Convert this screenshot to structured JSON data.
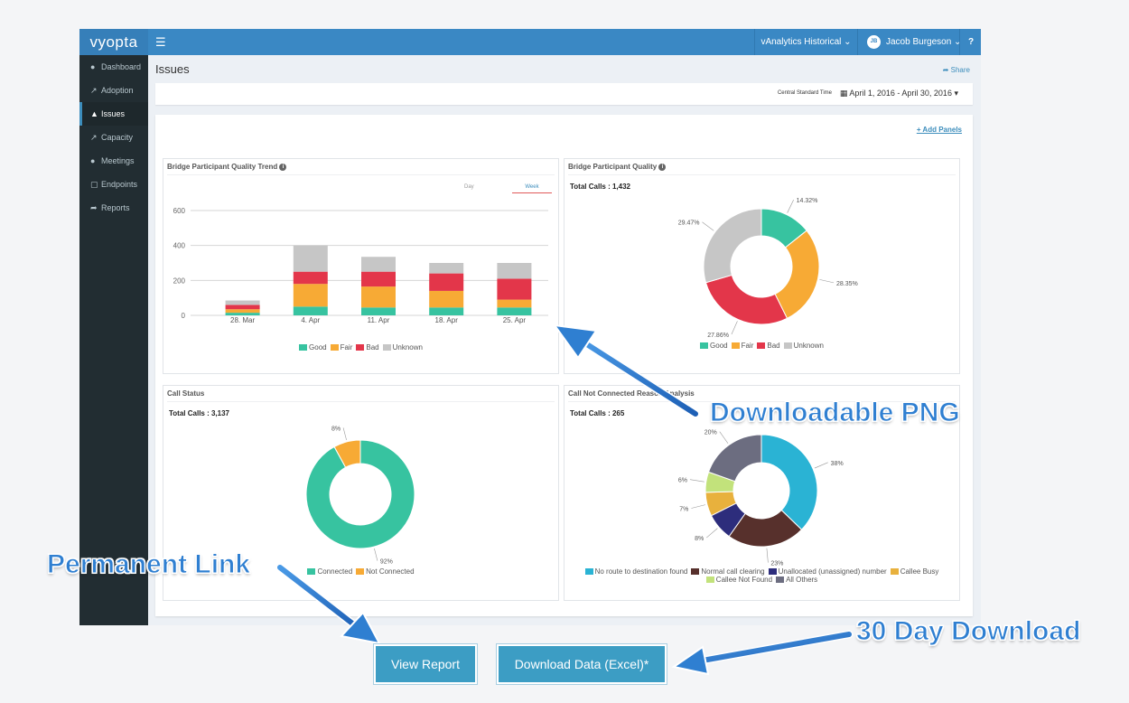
{
  "app": {
    "logo": "vyopta",
    "top_menu": "vAnalytics Historical",
    "user_initials": "JB",
    "user_name": "Jacob Burgeson"
  },
  "sidebar": {
    "items": [
      {
        "label": "Dashboard",
        "icon": "dashboard-icon"
      },
      {
        "label": "Adoption",
        "icon": "chart-line-icon"
      },
      {
        "label": "Issues",
        "icon": "warning-icon",
        "active": true
      },
      {
        "label": "Capacity",
        "icon": "chart-area-icon"
      },
      {
        "label": "Meetings",
        "icon": "users-icon"
      },
      {
        "label": "Endpoints",
        "icon": "monitor-icon"
      },
      {
        "label": "Reports",
        "icon": "share-arrow-icon"
      }
    ]
  },
  "page": {
    "title": "Issues",
    "share": "Share",
    "timezone": "Central Standard Time",
    "date_range": "April 1, 2016 - April 30, 2016",
    "add_panels": "+ Add Panels"
  },
  "panels": {
    "trend": {
      "title": "Bridge Participant Quality Trend",
      "tab_day": "Day",
      "tab_week": "Week"
    },
    "quality": {
      "title": "Bridge Participant Quality",
      "total": "Total Calls : 1,432"
    },
    "status": {
      "title": "Call Status",
      "total": "Total Calls : 3,137"
    },
    "reason": {
      "title": "Call Not Connected Reason Analysis",
      "total": "Total Calls : 265"
    }
  },
  "chart_data": [
    {
      "type": "bar",
      "stacked": true,
      "title": "Bridge Participant Quality Trend",
      "categories": [
        "28. Mar",
        "4. Apr",
        "11. Apr",
        "18. Apr",
        "25. Apr"
      ],
      "ylim": [
        0,
        600
      ],
      "yticks": [
        0,
        200,
        400,
        600
      ],
      "grid": true,
      "legend": "bottom",
      "series": [
        {
          "name": "Good",
          "color": "#37c3a0",
          "values": [
            15,
            50,
            45,
            45,
            45
          ]
        },
        {
          "name": "Fair",
          "color": "#f7aa35",
          "values": [
            20,
            130,
            120,
            95,
            45
          ]
        },
        {
          "name": "Bad",
          "color": "#e3364a",
          "values": [
            25,
            70,
            85,
            100,
            120
          ]
        },
        {
          "name": "Unknown",
          "color": "#c6c6c6",
          "values": [
            25,
            150,
            85,
            60,
            90
          ]
        }
      ]
    },
    {
      "type": "pie",
      "donut": true,
      "title": "Bridge Participant Quality",
      "legend": "bottom",
      "slices": [
        {
          "name": "Good",
          "color": "#37c3a0",
          "value": 14.32,
          "label": "14.32%"
        },
        {
          "name": "Fair",
          "color": "#f7aa35",
          "value": 28.35,
          "label": "28.35%"
        },
        {
          "name": "Bad",
          "color": "#e3364a",
          "value": 27.86,
          "label": "27.86%"
        },
        {
          "name": "Unknown",
          "color": "#c6c6c6",
          "value": 29.47,
          "label": "29.47%"
        }
      ]
    },
    {
      "type": "pie",
      "donut": true,
      "title": "Call Status",
      "legend": "bottom",
      "slices": [
        {
          "name": "Connected",
          "color": "#37c3a0",
          "value": 92,
          "label": "92%"
        },
        {
          "name": "Not Connected",
          "color": "#f7aa35",
          "value": 8,
          "label": "8%"
        }
      ]
    },
    {
      "type": "pie",
      "donut": true,
      "title": "Call Not Connected Reason Analysis",
      "legend": "bottom",
      "slices": [
        {
          "name": "No route to destination found",
          "color": "#2ab3d4",
          "value": 38,
          "label": "38%"
        },
        {
          "name": "Normal call clearing",
          "color": "#57302c",
          "value": 23,
          "label": "23%"
        },
        {
          "name": "Unallocated (unassigned) number",
          "color": "#2d2d7c",
          "value": 8,
          "label": "8%"
        },
        {
          "name": "Callee Busy",
          "color": "#e8b13d",
          "value": 7,
          "label": "7%"
        },
        {
          "name": "Callee Not Found",
          "color": "#c2e27b",
          "value": 6,
          "label": "6%"
        },
        {
          "name": "All Others",
          "color": "#6c6d80",
          "value": 20,
          "label": "20%"
        }
      ]
    }
  ],
  "annotations": {
    "png": "Downloadable PNG",
    "link": "Permanent Link",
    "download": "30 Day Download"
  },
  "buttons": {
    "view_report": "View Report",
    "download_data": "Download Data (Excel)*"
  }
}
